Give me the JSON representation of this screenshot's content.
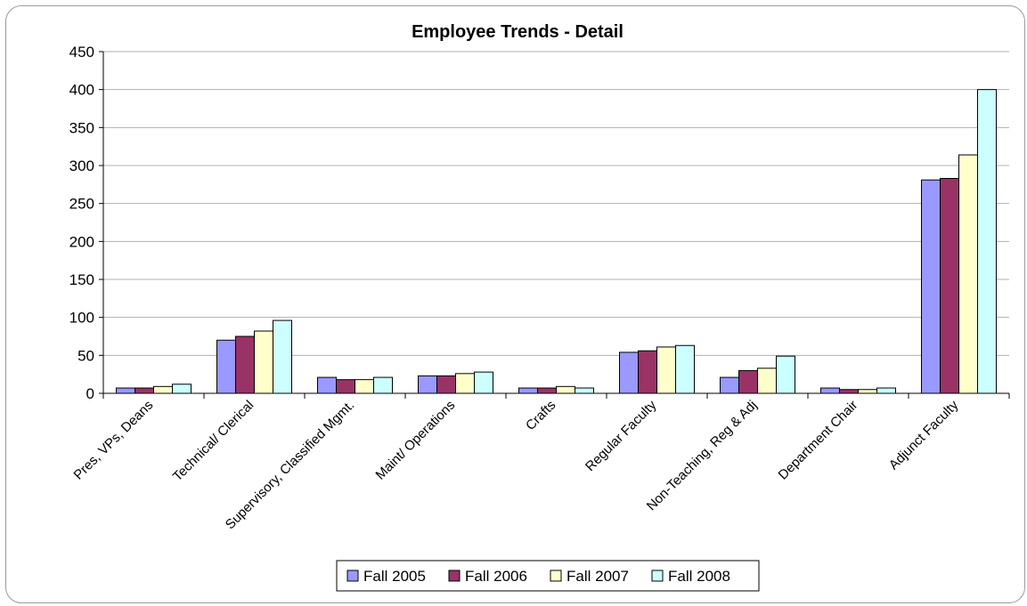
{
  "chart_data": {
    "type": "bar",
    "title": "Employee Trends - Detail",
    "xlabel": "",
    "ylabel": "",
    "ylim": [
      0,
      450
    ],
    "yticks": [
      0,
      50,
      100,
      150,
      200,
      250,
      300,
      350,
      400,
      450
    ],
    "grid": true,
    "legend_position": "bottom",
    "categories": [
      "Pres, VPs, Deans",
      "Technical/ Clerical",
      "Supervisory, Classified Mgmt.",
      "Maint/ Operations",
      "Crafts",
      "Regular Faculty",
      "Non-Teaching, Reg & Adj",
      "Department Chair",
      "Adjunct Faculty"
    ],
    "series": [
      {
        "name": "Fall 2005",
        "color": "#9999ff",
        "values": [
          7,
          70,
          21,
          23,
          7,
          54,
          21,
          7,
          281
        ]
      },
      {
        "name": "Fall 2006",
        "color": "#993366",
        "values": [
          7,
          75,
          18,
          23,
          7,
          56,
          30,
          5,
          283
        ]
      },
      {
        "name": "Fall 2007",
        "color": "#ffffcc",
        "values": [
          9,
          82,
          18,
          26,
          9,
          61,
          33,
          5,
          314
        ]
      },
      {
        "name": "Fall 2008",
        "color": "#ccffff",
        "values": [
          12,
          96,
          21,
          28,
          7,
          63,
          49,
          7,
          400
        ]
      }
    ]
  }
}
